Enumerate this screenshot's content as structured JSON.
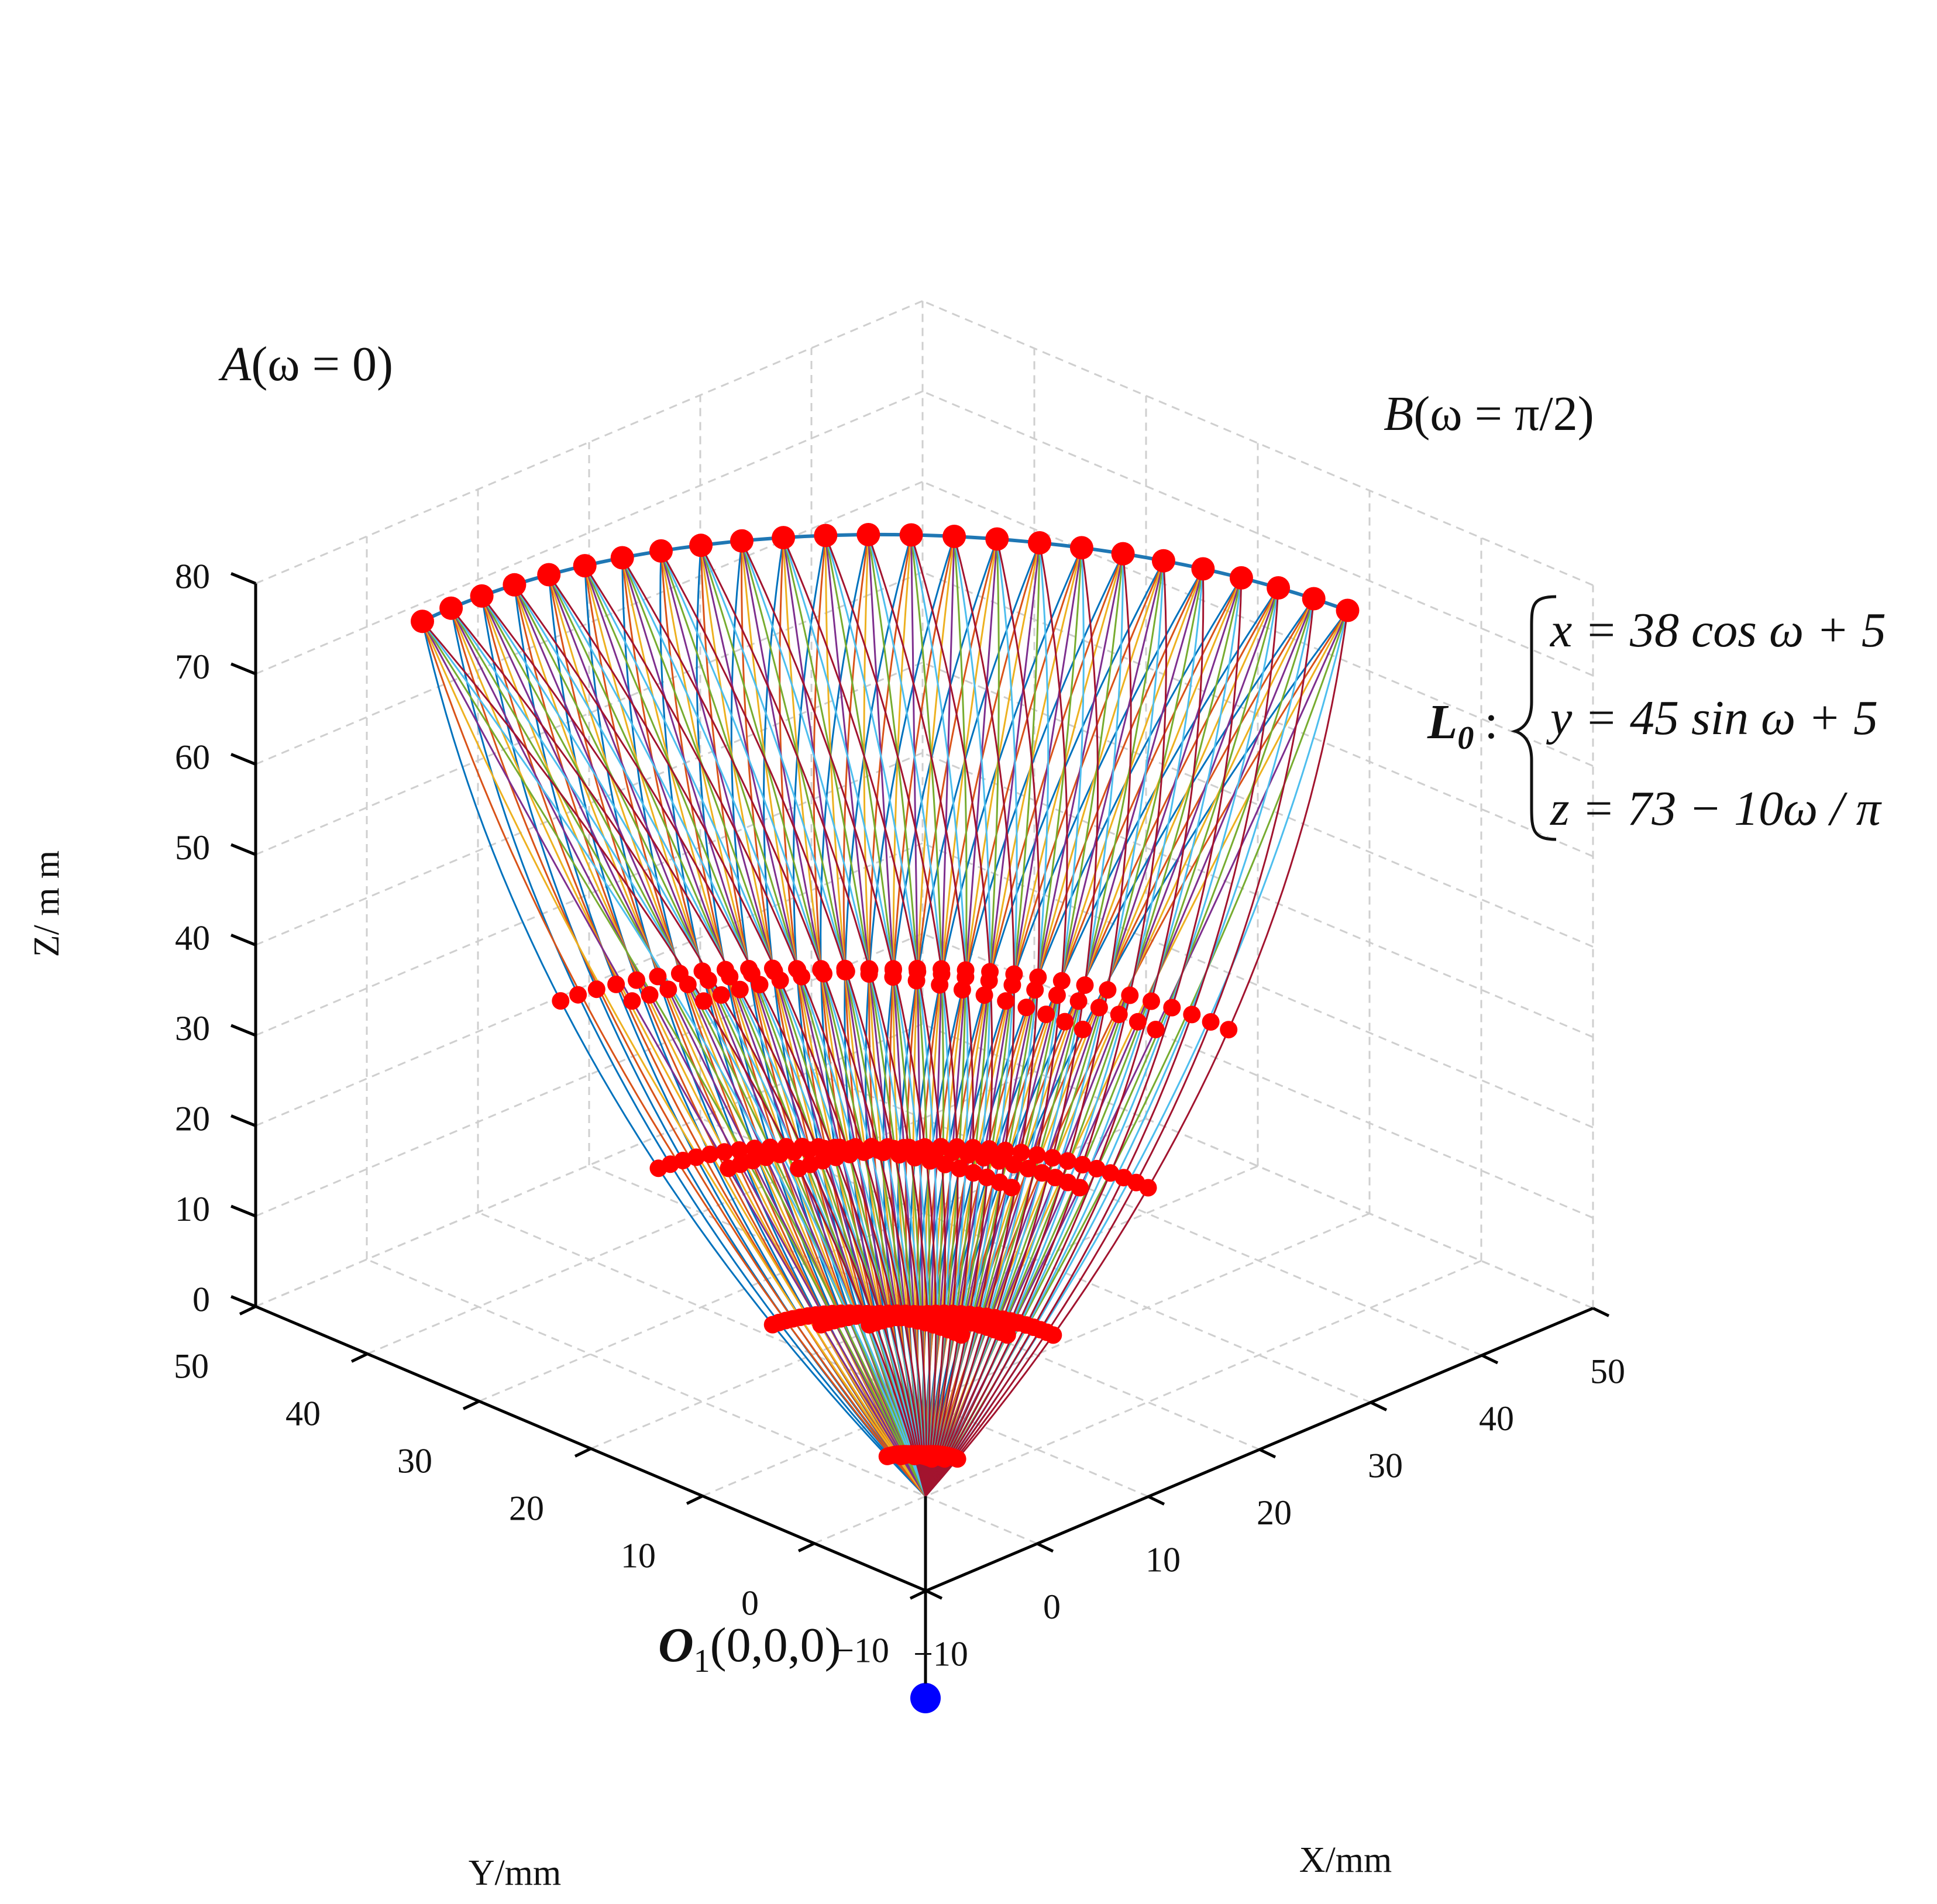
{
  "chart_data": {
    "type": "line3d",
    "xlabel": "X/mm",
    "ylabel": "Y/mm",
    "zlabel": "Z/ m m",
    "xlim": [
      -10,
      50
    ],
    "ylim": [
      -10,
      50
    ],
    "zlim": [
      0,
      80
    ],
    "xticks": [
      "−10",
      "0",
      "10",
      "20",
      "30",
      "40",
      "50"
    ],
    "yticks": [
      "−10",
      "0",
      "10",
      "20",
      "30",
      "40",
      "50"
    ],
    "zticks": [
      "0",
      "10",
      "20",
      "30",
      "40",
      "50",
      "60",
      "70",
      "80"
    ],
    "grid": true,
    "origin_point": {
      "x": 0,
      "y": 0,
      "z": 0,
      "color": "#0000ff"
    },
    "curve_L0": {
      "x": "38cos(ω)+5",
      "y": "45sin(ω)+5",
      "z": "73−10ω/π",
      "omega_range": [
        0,
        1.5708
      ],
      "color": "#1f77b4"
    },
    "target_point_count": 25,
    "intermediate_levels_z": [
      3,
      13,
      25,
      38
    ],
    "marker_color": "#ff0000",
    "series_colors": [
      "#0072BD",
      "#D95319",
      "#EDB120",
      "#7E2F8E",
      "#77AC30",
      "#4DBEEE",
      "#A2142F"
    ],
    "annotations": {
      "A_label": "A",
      "A_paren": "(ω = 0)",
      "B_label": "B",
      "B_paren": "(ω = π/2)",
      "O_label": "O",
      "O_sub": "1",
      "O_paren": "(0,0,0)"
    },
    "equation": {
      "name": "L",
      "name_sub": "0",
      "colon": ":",
      "line1": "x = 38 cos ω + 5",
      "line2": "y = 45 sin ω + 5",
      "line3": "z = 73 − 10ω / π"
    }
  }
}
